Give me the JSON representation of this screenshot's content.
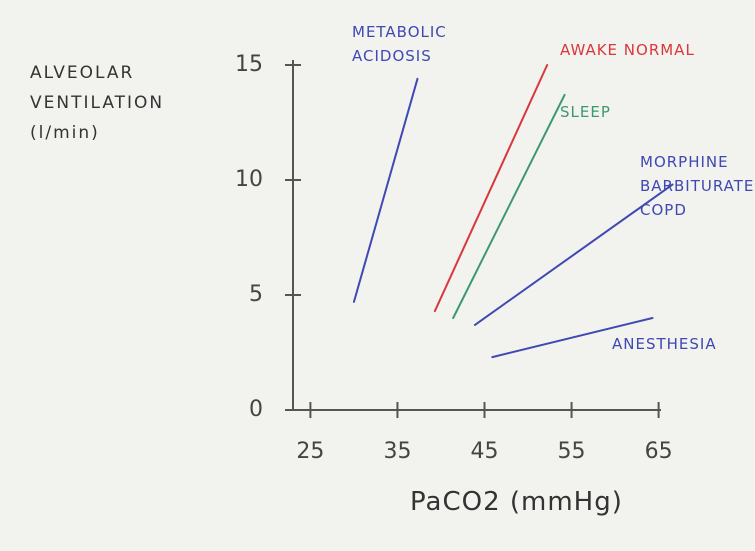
{
  "chart_data": {
    "type": "line",
    "y_label": "ALVEOLAR VENTILATION (l/min)",
    "x_label": "PaCO2 (mmHg)",
    "xlim": [
      23,
      67
    ],
    "xticks": [
      25,
      35,
      45,
      55,
      65
    ],
    "ylim": [
      0,
      15
    ],
    "yticks": [
      0,
      5,
      10,
      15
    ],
    "grid": false,
    "series": [
      {
        "name": "METABOLIC ACIDOSIS",
        "color": "#3f48b3",
        "x": [
          30,
          37.3
        ],
        "values": [
          4.7,
          14.4
        ]
      },
      {
        "name": "AWAKE NORMAL",
        "color": "#d8383a",
        "x": [
          39.3,
          52.2
        ],
        "values": [
          4.3,
          15
        ]
      },
      {
        "name": "SLEEP",
        "color": "#3a9a6c",
        "x": [
          41.4,
          54.2
        ],
        "values": [
          4.0,
          13.7
        ]
      },
      {
        "name": "MORPHINE BARBITURATES COPD",
        "color": "#3f48b3",
        "x": [
          43.9,
          66.6
        ],
        "values": [
          3.7,
          9.8
        ]
      },
      {
        "name": "ANESTHESIA",
        "color": "#3f48b3",
        "x": [
          45.9,
          64.3
        ],
        "values": [
          2.3,
          4.0
        ]
      }
    ]
  }
}
